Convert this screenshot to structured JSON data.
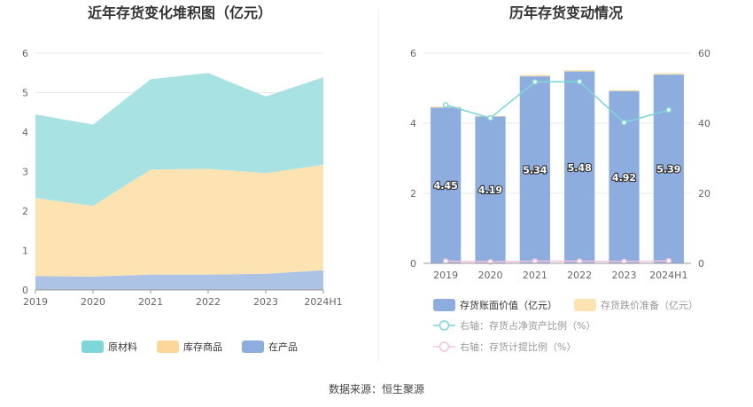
{
  "chart_data": [
    {
      "type": "area",
      "stacked": true,
      "title": "近年存货变化堆积图（亿元）",
      "categories": [
        "2019",
        "2020",
        "2021",
        "2022",
        "2023",
        "2024H1"
      ],
      "ylim": [
        0,
        6
      ],
      "yticks": [
        "0",
        "1",
        "2",
        "3",
        "4",
        "5",
        "6"
      ],
      "grid": true,
      "legend_position": "bottom",
      "series": [
        {
          "name": "在产品",
          "values": [
            0.35,
            0.34,
            0.39,
            0.39,
            0.41,
            0.5
          ],
          "color": "#adc3e6"
        },
        {
          "name": "库存商品",
          "values": [
            1.98,
            1.79,
            2.66,
            2.68,
            2.55,
            2.67
          ],
          "color": "#fde3b2"
        },
        {
          "name": "原材料",
          "values": [
            2.12,
            2.06,
            2.29,
            2.43,
            1.94,
            2.22
          ],
          "color": "#a8e2e3"
        }
      ],
      "legend": [
        {
          "name": "原材料",
          "color": "#7fd6d8"
        },
        {
          "name": "库存商品",
          "color": "#fbd79a"
        },
        {
          "name": "在产品",
          "color": "#8eaddf"
        }
      ]
    },
    {
      "type": "bar",
      "title": "历年存货变动情况",
      "categories": [
        "2019",
        "2020",
        "2021",
        "2022",
        "2023",
        "2024H1"
      ],
      "ylim": [
        0,
        6
      ],
      "yticks": [
        "0",
        "2",
        "4",
        "6"
      ],
      "y2lim": [
        0,
        60
      ],
      "y2ticks": [
        "0",
        "20",
        "40",
        "60"
      ],
      "legend_position": "bottom",
      "series": [
        {
          "name": "存货账面价值（亿元）",
          "kind": "bar",
          "values": [
            4.45,
            4.19,
            5.34,
            5.48,
            4.92,
            5.39
          ],
          "labels": [
            "4.45",
            "4.19",
            "5.34",
            "5.48",
            "4.92",
            "5.39"
          ],
          "color": "#8eaddf"
        },
        {
          "name": "存货跌价准备（亿元）",
          "kind": "bar-stack",
          "values": [
            0.03,
            0.02,
            0.04,
            0.04,
            0.03,
            0.04
          ],
          "color": "#fde3b2"
        },
        {
          "name": "右轴：存货占净资产比例（%）",
          "kind": "line",
          "axis": "right",
          "values": [
            45.2,
            41.5,
            51.8,
            51.9,
            40.2,
            43.8
          ],
          "color": "#7fd6d8"
        },
        {
          "name": "右轴：存货计提比例（%）",
          "kind": "line",
          "axis": "right",
          "values": [
            0.6,
            0.4,
            0.6,
            0.6,
            0.5,
            0.7
          ],
          "color": "#f2c3de"
        }
      ]
    }
  ],
  "footer": {
    "source": "数据来源：恒生聚源"
  }
}
